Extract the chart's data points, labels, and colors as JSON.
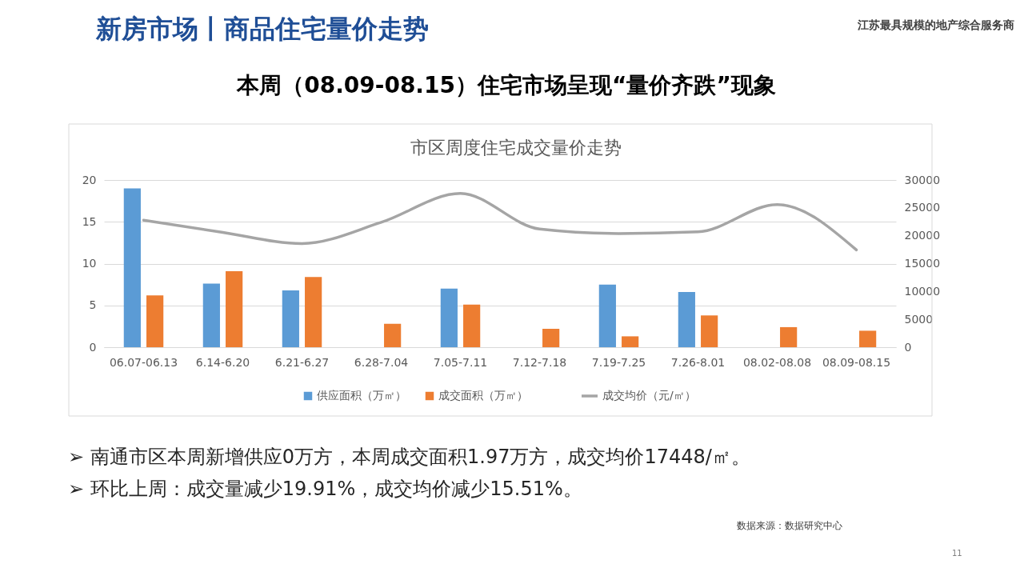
{
  "chart_data": {
    "type": "bar",
    "title": "市区周度住宅成交量价走势",
    "categories": [
      "06.07-06.13",
      "6.14-6.20",
      "6.21-6.27",
      "6.28-7.04",
      "7.05-7.11",
      "7.12-7.18",
      "7.19-7.25",
      "7.26-8.01",
      "08.02-08.08",
      "08.09-08.15"
    ],
    "series": [
      {
        "name": "供应面积（万㎡）",
        "color": "#5b9bd5",
        "values": [
          19.0,
          7.6,
          6.8,
          null,
          7.0,
          null,
          7.5,
          6.6,
          null,
          null
        ]
      },
      {
        "name": "成交面积（万㎡）",
        "color": "#ed7d31",
        "values": [
          6.2,
          9.1,
          8.4,
          2.8,
          5.1,
          2.2,
          1.3,
          3.8,
          2.4,
          1.97
        ]
      },
      {
        "name": "成交均价（元/㎡）",
        "type": "line",
        "axis": "y2",
        "color": "#a5a5a5",
        "values": [
          22800,
          20600,
          18600,
          22400,
          27600,
          21200,
          20400,
          20700,
          25600,
          17448
        ]
      }
    ],
    "ylim": [
      0,
      20
    ],
    "yticks": [
      0,
      5,
      10,
      15,
      20
    ],
    "y2lim": [
      0,
      30000
    ],
    "y2ticks": [
      0,
      5000,
      10000,
      15000,
      20000,
      25000,
      30000
    ],
    "grid": "y",
    "legend": "bottom",
    "annotations": [
      "新房市场丨商品住宅量价走势",
      "江苏最具规模的地产综合服务商",
      "本周（08.09-08.15）住宅市场呈现“量价齐跌”现象",
      "➢ 南通市区本周新增供应0万方，本周成交面积1.97万方，成交均价17448/㎡。",
      "➢ 环比上周：成交量减少19.91%，成交均价减少15.51%。",
      "数据来源：数据研究中心",
      "11"
    ]
  }
}
